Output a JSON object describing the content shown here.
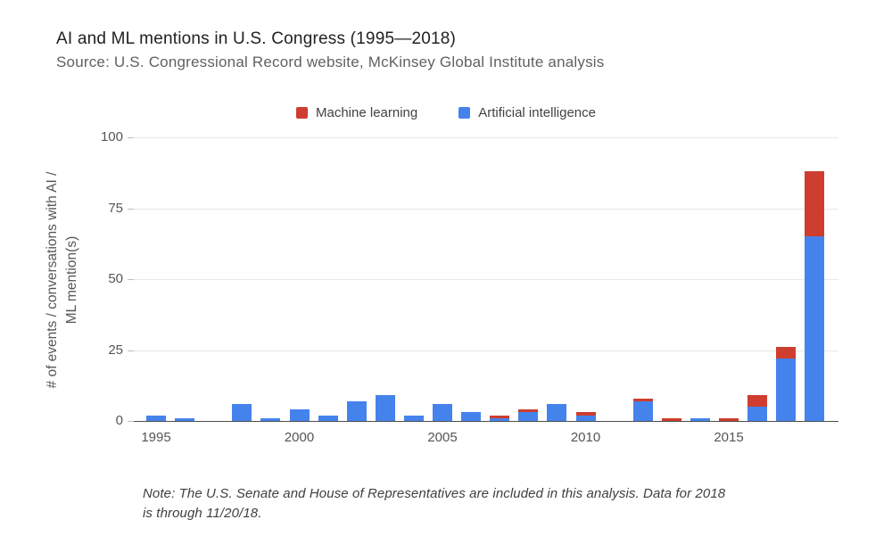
{
  "header": {
    "title": "AI and ML mentions in U.S. Congress (1995—2018)",
    "subtitle": "Source: U.S. Congressional Record website, McKinsey Global Institute analysis"
  },
  "legend": {
    "items": [
      {
        "label": "Machine learning",
        "color": "#CE3D2F"
      },
      {
        "label": "Artificial intelligence",
        "color": "#4583EC"
      }
    ]
  },
  "note": {
    "line1": "Note: The U.S. Senate and House of Representatives are included in this analysis. Data for 2018",
    "line2": "is through 11/20/18."
  },
  "chart_data": {
    "type": "bar",
    "stacked": true,
    "title": "AI and ML mentions in U.S. Congress (1995—2018)",
    "ylabel_line1": "# of events / conversations with AI /",
    "ylabel_line2": "ML mention(s)",
    "xlabel": "",
    "ylim": [
      0,
      100
    ],
    "y_ticks": [
      0,
      25,
      50,
      75,
      100
    ],
    "x_tick_years": [
      1995,
      2000,
      2005,
      2010,
      2015
    ],
    "categories": [
      1995,
      1996,
      1997,
      1998,
      1999,
      2000,
      2001,
      2002,
      2003,
      2004,
      2005,
      2006,
      2007,
      2008,
      2009,
      2010,
      2011,
      2012,
      2013,
      2014,
      2015,
      2016,
      2017,
      2018
    ],
    "series": [
      {
        "name": "Artificial intelligence",
        "color": "#4583EC",
        "values": [
          2,
          1,
          0,
          6,
          1,
          4,
          2,
          7,
          9,
          2,
          6,
          3,
          1,
          3,
          6,
          2,
          0,
          7,
          0,
          1,
          0,
          5,
          22,
          65
        ]
      },
      {
        "name": "Machine learning",
        "color": "#CE3D2F",
        "values": [
          0,
          0,
          0,
          0,
          0,
          0,
          0,
          0,
          0,
          0,
          0,
          0,
          1,
          1,
          0,
          1,
          0,
          1,
          1,
          0,
          1,
          4,
          4,
          23
        ]
      }
    ],
    "grid": true,
    "legend_position": "top-center"
  }
}
